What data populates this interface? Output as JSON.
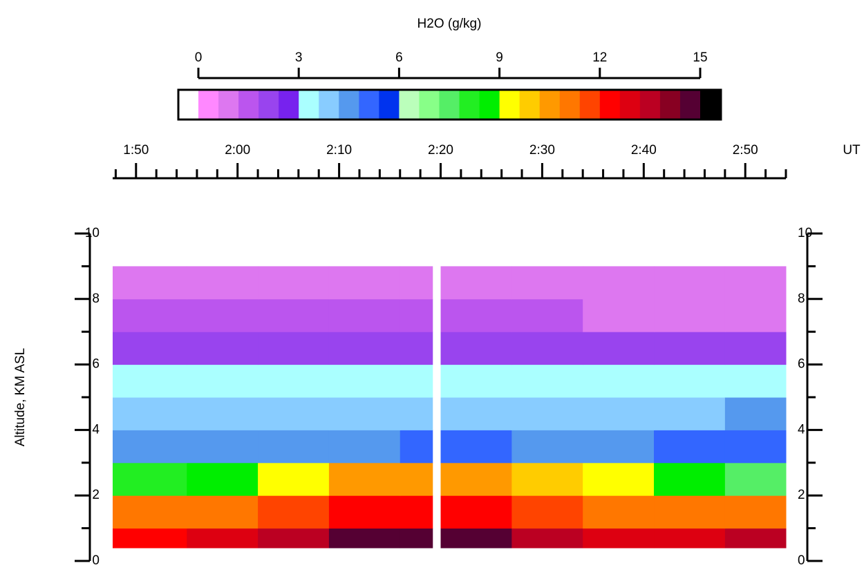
{
  "chart_data": {
    "type": "heatmap",
    "colorbar": {
      "title": "H2O (g/kg)",
      "lim": [
        0,
        15
      ],
      "ticks": [
        0,
        3,
        6,
        9,
        12,
        15
      ],
      "under": "#ffffff",
      "over": "#000000",
      "colors": [
        "#ff88ff",
        "#dd77f0",
        "#bb55ee",
        "#9944ee",
        "#7722ee",
        "#aaffff",
        "#88ccff",
        "#5599ee",
        "#3366ff",
        "#0033ee",
        "#bbffbb",
        "#88ff88",
        "#55ee66",
        "#22ee22",
        "#00ee00",
        "#ffff00",
        "#ffcc00",
        "#ff9900",
        "#ff7700",
        "#ff4400",
        "#ff0000",
        "#dd0011",
        "#bb0022",
        "#880022",
        "#550033"
      ]
    },
    "xunit": "UT",
    "xlim": [
      107.7,
      174
    ],
    "xticks": [
      {
        "value": 110,
        "label": "1:50"
      },
      {
        "value": 120,
        "label": "2:00"
      },
      {
        "value": 130,
        "label": "2:10"
      },
      {
        "value": 140,
        "label": "2:20"
      },
      {
        "value": 150,
        "label": "2:30"
      },
      {
        "value": 160,
        "label": "2:40"
      },
      {
        "value": 170,
        "label": "2:50"
      }
    ],
    "xminorticks": [
      108,
      112,
      114,
      116,
      118,
      122,
      124,
      126,
      128,
      132,
      134,
      136,
      138,
      142,
      144,
      146,
      148,
      152,
      154,
      156,
      158,
      162,
      164,
      166,
      168,
      172,
      174
    ],
    "ylabel": "Altitude, KM ASL",
    "ylim": [
      0,
      10
    ],
    "yticks": [
      0,
      2,
      4,
      6,
      8,
      10
    ],
    "yminorticks": [
      1,
      3,
      5,
      7,
      9
    ],
    "x_edges": [
      107.7,
      115,
      122,
      129,
      136,
      139.2,
      140,
      147,
      154,
      161,
      168,
      174
    ],
    "y_edges": [
      0.4,
      1,
      2,
      3,
      4,
      5,
      6,
      7,
      8,
      9
    ],
    "z": [
      [
        12.5,
        12.8,
        13.5,
        14.5,
        14.5,
        null,
        14.5,
        13.5,
        13,
        13,
        13.5
      ],
      [
        11,
        11.2,
        11.5,
        12,
        12,
        null,
        12,
        11.5,
        11,
        10.8,
        10.8
      ],
      [
        8,
        8.5,
        9.5,
        10.5,
        10.5,
        null,
        10.5,
        10,
        9.5,
        8.5,
        7.5
      ],
      [
        4.5,
        4.5,
        4.2,
        4.5,
        4.8,
        null,
        4.8,
        4.5,
        4.5,
        4.8,
        5
      ],
      [
        4,
        3.8,
        3.8,
        3.8,
        3.8,
        null,
        3.8,
        3.8,
        3.9,
        4,
        4.2
      ],
      [
        3,
        3.1,
        3.2,
        3.3,
        3.2,
        null,
        3.2,
        3,
        3,
        3.1,
        3.3
      ],
      [
        2,
        2,
        2.2,
        2.3,
        2.2,
        null,
        2.2,
        2,
        2,
        2,
        2.1
      ],
      [
        1.2,
        1.2,
        1.3,
        1.4,
        1.3,
        null,
        1.3,
        1.2,
        1.1,
        1.1,
        1.1
      ],
      [
        0.8,
        0.8,
        0.9,
        1,
        0.9,
        null,
        0.9,
        0.8,
        0.7,
        0.7,
        0.7
      ]
    ]
  }
}
